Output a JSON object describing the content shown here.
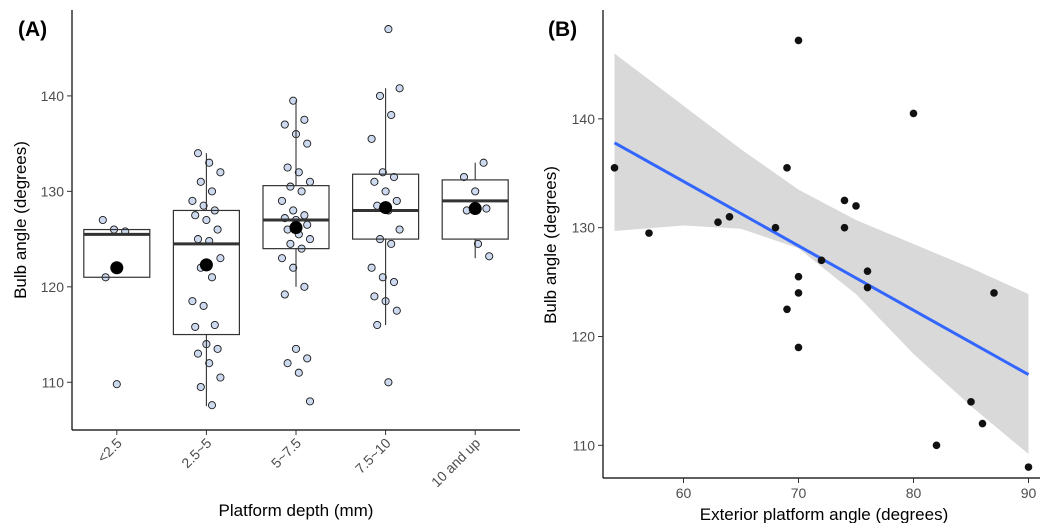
{
  "chart_data": [
    {
      "type": "box",
      "panel_label": "(A)",
      "title": "",
      "xlabel": "Platform depth (mm)",
      "ylabel": "Bulb angle (degrees)",
      "ylim": [
        105,
        149
      ],
      "y_ticks": [
        110,
        120,
        130,
        140
      ],
      "categories": [
        "<2.5",
        "2.5~5",
        "5~7.5",
        "7.5~10",
        "10 and up"
      ],
      "boxes": [
        {
          "category": "<2.5",
          "q1": 121,
          "median": 125.5,
          "q3": 126,
          "whisker_low": 121,
          "whisker_high": 126,
          "mean": 122
        },
        {
          "category": "2.5~5",
          "q1": 115,
          "median": 124.5,
          "q3": 128,
          "whisker_low": 107.5,
          "whisker_high": 134,
          "mean": 122.3
        },
        {
          "category": "5~7.5",
          "q1": 124,
          "median": 127,
          "q3": 130.6,
          "whisker_low": 120,
          "whisker_high": 139.5,
          "mean": 126.2
        },
        {
          "category": "7.5~10",
          "q1": 125,
          "median": 128,
          "q3": 131.8,
          "whisker_low": 116,
          "whisker_high": 140.8,
          "mean": 128.3
        },
        {
          "category": "10 and up",
          "q1": 125,
          "median": 129,
          "q3": 131.2,
          "whisker_low": 123,
          "whisker_high": 133,
          "mean": 128.2
        }
      ],
      "points": [
        {
          "category": "<2.5",
          "values": [
            127,
            126,
            125.8,
            121,
            109.8
          ]
        },
        {
          "category": "2.5~5",
          "values": [
            134,
            133,
            132,
            131,
            130,
            129,
            128.5,
            128,
            127.5,
            127,
            126,
            125,
            124.8,
            123,
            122,
            121,
            118.5,
            118,
            116,
            115.8,
            114,
            113.5,
            113,
            112,
            110.5,
            109.5,
            107.6
          ]
        },
        {
          "category": "5~7.5",
          "values": [
            139.5,
            137.5,
            137,
            136,
            135,
            132.5,
            132,
            131,
            130.5,
            130,
            129,
            128,
            127.5,
            127.2,
            127,
            126.5,
            126,
            125.5,
            125,
            124.5,
            124,
            123,
            122,
            120,
            119.2,
            113.5,
            112.5,
            112,
            111,
            108
          ]
        },
        {
          "category": "7.5~10",
          "values": [
            147,
            140.8,
            140,
            138,
            135.5,
            132,
            131.5,
            131,
            130,
            129,
            128.5,
            128,
            126,
            125,
            124.5,
            122,
            121,
            120.5,
            119,
            118.5,
            117.5,
            116,
            110
          ]
        },
        {
          "category": "10 and up",
          "values": [
            133,
            131.5,
            130,
            128.2,
            128,
            124.5,
            123.2
          ]
        }
      ]
    },
    {
      "type": "scatter",
      "panel_label": "(B)",
      "title": "",
      "xlabel": "Exterior platform angle (degrees)",
      "ylabel": "Bulb angle (degrees)",
      "xlim": [
        53,
        91
      ],
      "ylim": [
        107,
        150
      ],
      "x_ticks": [
        60,
        70,
        80,
        90
      ],
      "y_ticks": [
        110,
        120,
        130,
        140
      ],
      "points": [
        {
          "x": 54,
          "y": 135.5
        },
        {
          "x": 57,
          "y": 129.5
        },
        {
          "x": 63,
          "y": 130.5
        },
        {
          "x": 64,
          "y": 131
        },
        {
          "x": 68,
          "y": 130
        },
        {
          "x": 69,
          "y": 135.5
        },
        {
          "x": 69,
          "y": 122.5
        },
        {
          "x": 70,
          "y": 147.2
        },
        {
          "x": 70,
          "y": 125.5
        },
        {
          "x": 70,
          "y": 124
        },
        {
          "x": 70,
          "y": 119
        },
        {
          "x": 72,
          "y": 127
        },
        {
          "x": 74,
          "y": 132.5
        },
        {
          "x": 74,
          "y": 130
        },
        {
          "x": 75,
          "y": 132
        },
        {
          "x": 76,
          "y": 126
        },
        {
          "x": 76,
          "y": 124.5
        },
        {
          "x": 80,
          "y": 140.5
        },
        {
          "x": 82,
          "y": 110
        },
        {
          "x": 85,
          "y": 114
        },
        {
          "x": 86,
          "y": 112
        },
        {
          "x": 87,
          "y": 124
        },
        {
          "x": 90,
          "y": 108
        }
      ],
      "fit_line": {
        "x": [
          54,
          90
        ],
        "y": [
          137.8,
          116.5
        ],
        "color": "#3366ff"
      },
      "confidence_band": {
        "x": [
          54,
          60,
          65,
          70,
          75,
          80,
          85,
          90
        ],
        "lower": [
          129.7,
          130.2,
          129.9,
          128.1,
          123.9,
          118.4,
          113.6,
          109.2
        ],
        "upper": [
          146.0,
          141.2,
          137.2,
          133.5,
          130.7,
          128.5,
          126.3,
          123.9
        ],
        "color": "#d9d9d9"
      }
    }
  ]
}
